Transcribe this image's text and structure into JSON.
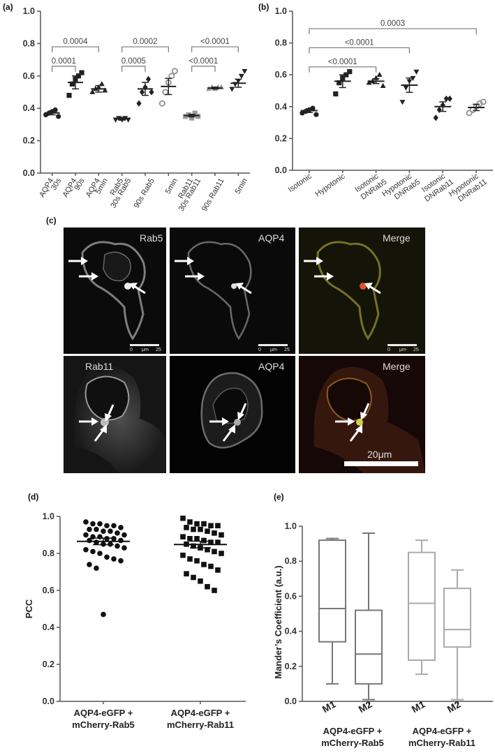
{
  "panels": {
    "a": "(a)",
    "b": "(b)",
    "c": "(c)",
    "d": "(d)",
    "e": "(e)"
  },
  "chart_data": [
    {
      "id": "a",
      "type": "scatter",
      "title": "",
      "ylim": [
        0,
        1.0
      ],
      "yticks": [
        "0.0",
        "0.2",
        "0.4",
        "0.6",
        "0.8",
        "1.0"
      ],
      "categories": [
        {
          "l1": "AQP4",
          "l2": "30s"
        },
        {
          "l1": "AQP4",
          "l2": "90s"
        },
        {
          "l1": "AQP4",
          "l2": "5min"
        },
        {
          "l1": "Rab5",
          "l2": "30s Rab5"
        },
        {
          "l1": "",
          "l2": "90s Rab5"
        },
        {
          "l1": "",
          "l2": "5min"
        },
        {
          "l1": "Rab11",
          "l2": "30s Rab11"
        },
        {
          "l1": "",
          "l2": "90s Rab11"
        },
        {
          "l1": "",
          "l2": "5min"
        }
      ],
      "series": [
        {
          "marker": "circle",
          "color": "#222222",
          "mean": 0.372,
          "sem": 0.012,
          "values": [
            0.36,
            0.37,
            0.38,
            0.39,
            0.35
          ]
        },
        {
          "marker": "square",
          "color": "#222222",
          "mean": 0.56,
          "sem": 0.04,
          "values": [
            0.48,
            0.55,
            0.58,
            0.6,
            0.62
          ]
        },
        {
          "marker": "triangle-up",
          "color": "#222222",
          "mean": 0.52,
          "sem": 0.02,
          "values": [
            0.5,
            0.52,
            0.53,
            0.55,
            0.51
          ]
        },
        {
          "marker": "triangle-down",
          "color": "#222222",
          "mean": 0.335,
          "sem": 0.008,
          "values": [
            0.33,
            0.34,
            0.33,
            0.34,
            0.33
          ]
        },
        {
          "marker": "diamond",
          "color": "#222222",
          "mean": 0.52,
          "sem": 0.04,
          "values": [
            0.43,
            0.5,
            0.53,
            0.58,
            0.5
          ]
        },
        {
          "marker": "circle-open",
          "color": "#999999",
          "mean": 0.535,
          "sem": 0.05,
          "values": [
            0.43,
            0.5,
            0.56,
            0.6,
            0.63
          ]
        },
        {
          "marker": "square",
          "color": "#999999",
          "mean": 0.355,
          "sem": 0.008,
          "values": [
            0.35,
            0.36,
            0.34,
            0.37,
            0.35
          ]
        },
        {
          "marker": "triangle-up",
          "color": "#999999",
          "mean": 0.525,
          "sem": 0.006,
          "values": [
            0.52,
            0.53,
            0.52,
            0.53,
            0.53
          ]
        },
        {
          "marker": "triangle-down",
          "color": "#222222",
          "mean": 0.555,
          "sem": 0.025,
          "values": [
            0.52,
            0.55,
            0.57,
            0.6,
            0.63
          ]
        }
      ],
      "annotations": [
        {
          "from": 0,
          "to": 1,
          "y": 0.66,
          "label": "0.0001"
        },
        {
          "from": 0,
          "to": 2,
          "y": 0.78,
          "label": "0.0004"
        },
        {
          "from": 3,
          "to": 4,
          "y": 0.66,
          "label": "0.0005"
        },
        {
          "from": 3,
          "to": 5,
          "y": 0.78,
          "label": "0.0002"
        },
        {
          "from": 6,
          "to": 7,
          "y": 0.66,
          "label": "<0.0001"
        },
        {
          "from": 6,
          "to": 8,
          "y": 0.78,
          "label": "<0.0001"
        }
      ]
    },
    {
      "id": "b",
      "type": "scatter",
      "title": "",
      "ylim": [
        0,
        1.0
      ],
      "yticks": [
        "0.0",
        "0.2",
        "0.4",
        "0.6",
        "0.8",
        "1.0"
      ],
      "categories": [
        {
          "l1": "Isotonic",
          "l2": ""
        },
        {
          "l1": "Hypotonic",
          "l2": ""
        },
        {
          "l1": "Isotonic",
          "l2": "DNRab5"
        },
        {
          "l1": "Hypotonic",
          "l2": "DNRab5"
        },
        {
          "l1": "Isotonic",
          "l2": "DNRab11"
        },
        {
          "l1": "Hypotonic",
          "l2": "DNRab11"
        }
      ],
      "series": [
        {
          "marker": "circle",
          "color": "#222222",
          "mean": 0.375,
          "sem": 0.012,
          "values": [
            0.36,
            0.37,
            0.38,
            0.39,
            0.35
          ]
        },
        {
          "marker": "square",
          "color": "#222222",
          "mean": 0.56,
          "sem": 0.04,
          "values": [
            0.48,
            0.55,
            0.58,
            0.6,
            0.62
          ]
        },
        {
          "marker": "triangle-up",
          "color": "#222222",
          "mean": 0.56,
          "sem": 0.015,
          "values": [
            0.55,
            0.56,
            0.58,
            0.6,
            0.53
          ]
        },
        {
          "marker": "triangle-down",
          "color": "#222222",
          "mean": 0.535,
          "sem": 0.045,
          "values": [
            0.43,
            0.52,
            0.56,
            0.58,
            0.62
          ]
        },
        {
          "marker": "diamond",
          "color": "#222222",
          "mean": 0.4,
          "sem": 0.03,
          "values": [
            0.33,
            0.38,
            0.41,
            0.45,
            0.45
          ]
        },
        {
          "marker": "circle-open",
          "color": "#999999",
          "mean": 0.395,
          "sem": 0.02,
          "values": [
            0.36,
            0.38,
            0.4,
            0.42,
            0.43
          ]
        }
      ],
      "annotations": [
        {
          "from": 0,
          "to": 2,
          "y": 0.65,
          "label": "<0.0001"
        },
        {
          "from": 0,
          "to": 3,
          "y": 0.77,
          "label": "<0.0001"
        },
        {
          "from": 0,
          "to": 5,
          "y": 0.89,
          "label": "0.0003"
        }
      ]
    },
    {
      "id": "d",
      "type": "scatter",
      "ylabel": "PCC",
      "ylim": [
        0,
        1.0
      ],
      "yticks": [
        "0.0",
        "0.2",
        "0.4",
        "0.6",
        "0.8",
        "1.0"
      ],
      "categories": [
        {
          "l1": "AQP4-eGFP +",
          "l2": "mCherry-Rab5"
        },
        {
          "l1": "AQP4-eGFP +",
          "l2": "mCherry-Rab11"
        }
      ],
      "series": [
        {
          "marker": "circle",
          "color": "#111111",
          "mean": 0.865,
          "sem": 0.018,
          "values": [
            0.97,
            0.96,
            0.96,
            0.95,
            0.95,
            0.94,
            0.93,
            0.93,
            0.92,
            0.92,
            0.91,
            0.9,
            0.9,
            0.89,
            0.89,
            0.88,
            0.88,
            0.87,
            0.87,
            0.86,
            0.85,
            0.85,
            0.84,
            0.83,
            0.82,
            0.81,
            0.8,
            0.78,
            0.77,
            0.76,
            0.74,
            0.72,
            0.47
          ]
        },
        {
          "marker": "square",
          "color": "#111111",
          "mean": 0.848,
          "sem": 0.018,
          "values": [
            0.99,
            0.97,
            0.96,
            0.96,
            0.95,
            0.95,
            0.94,
            0.93,
            0.93,
            0.92,
            0.91,
            0.9,
            0.89,
            0.88,
            0.88,
            0.87,
            0.86,
            0.86,
            0.85,
            0.84,
            0.83,
            0.82,
            0.81,
            0.8,
            0.79,
            0.77,
            0.76,
            0.74,
            0.73,
            0.71,
            0.69,
            0.67,
            0.65,
            0.62,
            0.6
          ]
        }
      ]
    },
    {
      "id": "e",
      "type": "box",
      "ylabel": "Mander’s Coefficient (a.u.)",
      "ylim": [
        0,
        1.0
      ],
      "yticks": [
        "0.0",
        "0.2",
        "0.4",
        "0.6",
        "0.8",
        "1.0"
      ],
      "categories": [
        "M1",
        "M2",
        "M1",
        "M2"
      ],
      "groups": [
        {
          "l1": "AQP4-eGFP +",
          "l2": "mCherry-Rab5"
        },
        {
          "l1": "AQP4-eGFP +",
          "l2": "mCherry-Rab11"
        }
      ],
      "boxes": [
        {
          "min": 0.1,
          "q1": 0.34,
          "median": 0.53,
          "q3": 0.92,
          "max": 0.93,
          "color": "#777777"
        },
        {
          "min": 0.01,
          "q1": 0.1,
          "median": 0.27,
          "q3": 0.52,
          "max": 0.96,
          "color": "#777777"
        },
        {
          "min": 0.155,
          "q1": 0.235,
          "median": 0.56,
          "q3": 0.85,
          "max": 0.92,
          "color": "#aaaaaa"
        },
        {
          "min": 0.01,
          "q1": 0.31,
          "median": 0.41,
          "q3": 0.645,
          "max": 0.75,
          "color": "#aaaaaa"
        }
      ]
    }
  ],
  "micrographs": {
    "tiles": [
      {
        "label": "Rab5"
      },
      {
        "label": "AQP4"
      },
      {
        "label": "Merge"
      },
      {
        "label": "Rab11"
      },
      {
        "label": "AQP4"
      },
      {
        "label": "Merge"
      }
    ],
    "scale_small": {
      "zero": "0",
      "unit": "μm",
      "value": "25"
    },
    "scale_bar": "20μm"
  }
}
